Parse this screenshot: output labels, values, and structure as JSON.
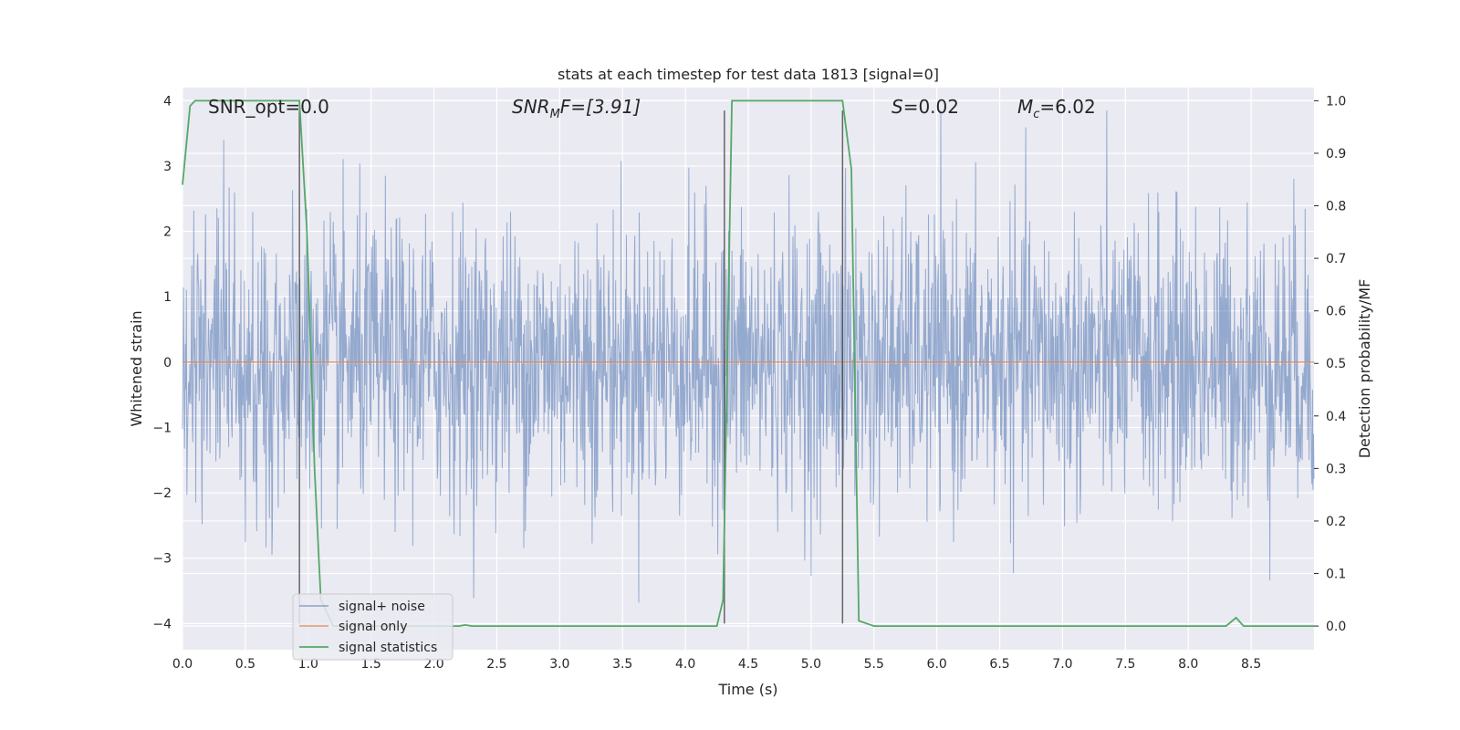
{
  "chart_data": {
    "type": "line",
    "title": "stats at each timestep for test data 1813 [signal=0]",
    "xlabel": "Time (s)",
    "ylabel": "Whitened strain",
    "y2label": "Detection probability/MF",
    "xlim": [
      0.0,
      9.0
    ],
    "ylim": [
      -4.4,
      4.2
    ],
    "y2lim": [
      -0.045,
      1.025
    ],
    "xticks": [
      "0.0",
      "0.5",
      "1.0",
      "1.5",
      "2.0",
      "2.5",
      "3.0",
      "3.5",
      "4.0",
      "4.5",
      "5.0",
      "5.5",
      "6.0",
      "6.5",
      "7.0",
      "7.5",
      "8.0",
      "8.5"
    ],
    "yticks": [
      "4",
      "3",
      "2",
      "1",
      "0",
      "−1",
      "−2",
      "−3",
      "−4"
    ],
    "y2ticks": [
      "1.0",
      "0.9",
      "0.8",
      "0.7",
      "0.6",
      "0.5",
      "0.4",
      "0.3",
      "0.2",
      "0.1",
      "0.0"
    ],
    "grid": true,
    "legend_position": "lower-left",
    "colors": {
      "plot_background": "#eaeaf2",
      "grid": "#ffffff",
      "noise": "#4c72b0",
      "signal_only": "#dd8452",
      "statistics": "#55a868",
      "vlines": "#444444"
    },
    "annotations": {
      "snr_opt": "SNR_opt=0.0",
      "snr_mf_main": "SNR",
      "snr_mf_sub": "M",
      "snr_mf_rest": "F=[3.91]",
      "s_main": "S",
      "s_rest": "=0.02",
      "mc_main": "M",
      "mc_sub": "c",
      "mc_rest": "=6.02"
    },
    "series": [
      {
        "name": "signal+ noise",
        "kind": "noise",
        "sample_rate": 256,
        "typical_envelope": 1.45,
        "max_value": 3.85,
        "min_value": -4.0
      },
      {
        "name": "signal only",
        "kind": "line",
        "x": [
          0.0,
          9.0
        ],
        "y": [
          0.0,
          0.0
        ]
      },
      {
        "name": "signal statistics",
        "kind": "line",
        "axis": "right",
        "x": [
          0.0,
          0.06,
          0.1,
          0.93,
          0.99,
          1.05,
          1.1,
          1.2,
          2.2,
          2.25,
          2.3,
          4.25,
          4.3,
          4.37,
          5.25,
          5.32,
          5.38,
          5.5,
          8.3,
          8.38,
          8.44,
          9.0
        ],
        "y": [
          0.84,
          0.99,
          1.0,
          1.0,
          0.75,
          0.3,
          0.05,
          0.0,
          0.0,
          0.002,
          0.0,
          0.0,
          0.05,
          1.0,
          1.0,
          0.87,
          0.01,
          0.0,
          0.0,
          0.016,
          0.0,
          0.0
        ]
      }
    ],
    "vertical_lines_x": [
      0.93,
      4.31,
      5.25
    ],
    "vertical_lines_range": [
      -4.0,
      3.85
    ]
  }
}
